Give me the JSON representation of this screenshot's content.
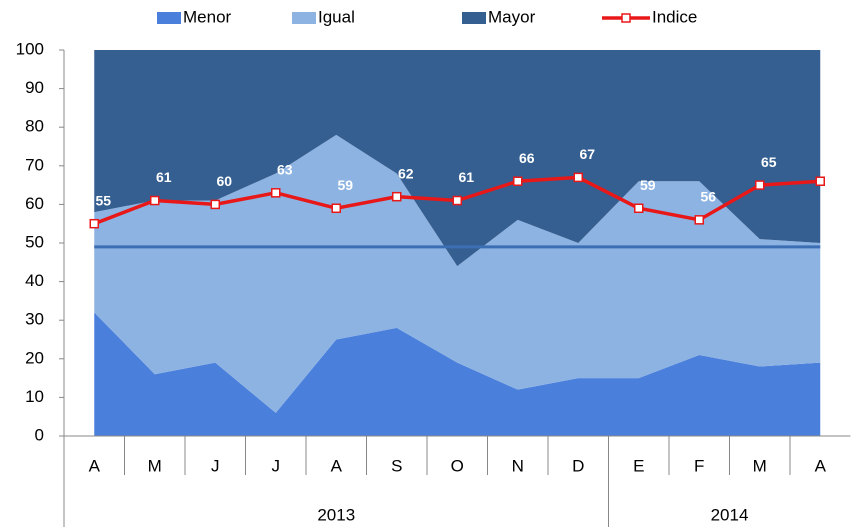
{
  "chart_data": {
    "type": "stacked_area_line",
    "categories": [
      "A",
      "M",
      "J",
      "J",
      "A",
      "S",
      "O",
      "N",
      "D",
      "E",
      "F",
      "M",
      "A"
    ],
    "groups": [
      {
        "label": "2013",
        "span": 9
      },
      {
        "label": "2014",
        "span": 4
      }
    ],
    "series": [
      {
        "name": "Menor",
        "color": "#4a7fdc",
        "kind": "area",
        "values": [
          32,
          16,
          19,
          6,
          25,
          28,
          19,
          12,
          15,
          15,
          21,
          18,
          19
        ]
      },
      {
        "name": "Igual",
        "color": "#8db3e2",
        "kind": "area",
        "values": [
          26,
          45,
          42,
          62,
          53,
          40,
          25,
          44,
          35,
          51,
          45,
          33,
          31
        ]
      },
      {
        "name": "Mayor",
        "color": "#365f91",
        "kind": "area",
        "values": [
          42,
          39,
          39,
          32,
          22,
          32,
          56,
          44,
          50,
          34,
          34,
          49,
          50
        ]
      },
      {
        "name": "Indice",
        "color": "#e81818",
        "kind": "line",
        "values": [
          55,
          61,
          60,
          63,
          59,
          62,
          61,
          66,
          67,
          59,
          56,
          65,
          66
        ]
      }
    ],
    "hline": {
      "value": 49,
      "color": "#3c6eb4"
    },
    "ylim": [
      0,
      100
    ],
    "yticks": [
      0,
      10,
      20,
      30,
      40,
      50,
      60,
      70,
      80,
      90,
      100
    ],
    "legend": "top"
  }
}
